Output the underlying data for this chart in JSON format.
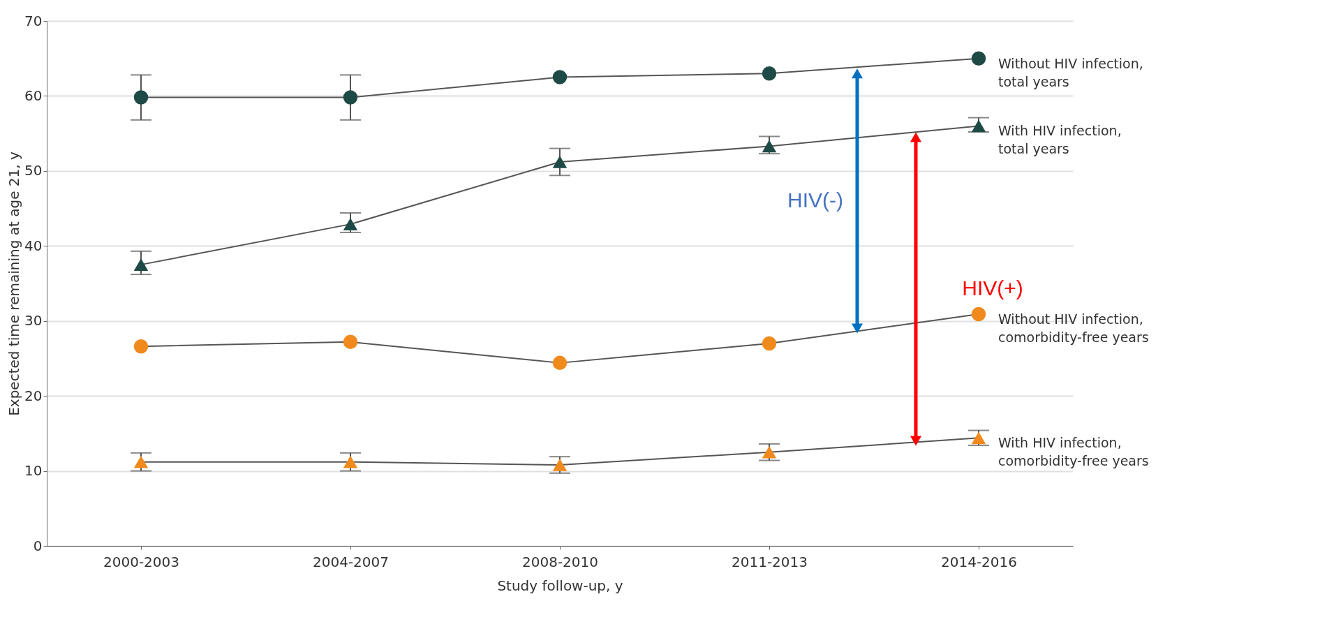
{
  "chart_data": {
    "type": "line",
    "xlabel": "Study follow-up, y",
    "ylabel": "Expected time remaining at age 21, y",
    "categories": [
      "2000-2003",
      "2004-2007",
      "2008-2010",
      "2011-2013",
      "2014-2016"
    ],
    "series": [
      {
        "name": "Without HIV infection, total years",
        "color": "#1e4a45",
        "marker": "circle",
        "values": [
          59.8,
          59.8,
          62.5,
          63.0,
          65.0
        ],
        "errors": [
          [
            56.8,
            62.8
          ],
          [
            56.8,
            62.8
          ],
          null,
          null,
          null
        ]
      },
      {
        "name": "With HIV infection, total years",
        "color": "#1e4a45",
        "marker": "triangle",
        "values": [
          37.5,
          42.9,
          51.2,
          53.3,
          56.0
        ],
        "errors": [
          [
            36.2,
            39.3
          ],
          [
            41.8,
            44.4
          ],
          [
            49.4,
            53.0
          ],
          [
            52.3,
            54.6
          ],
          [
            55.2,
            57.1
          ]
        ]
      },
      {
        "name": "Without HIV infection, comorbidity-free years",
        "color": "#f08a1c",
        "marker": "circle",
        "values": [
          26.6,
          27.2,
          24.4,
          27.0,
          30.9
        ]
      },
      {
        "name": "With HIV infection, comorbidity-free years",
        "color": "#f08a1c",
        "marker": "triangle",
        "values": [
          11.2,
          11.2,
          10.8,
          12.5,
          14.4
        ],
        "errors": [
          [
            10.0,
            12.4
          ],
          [
            10.0,
            12.4
          ],
          [
            9.7,
            11.9
          ],
          [
            11.4,
            13.6
          ],
          [
            13.4,
            15.4
          ]
        ]
      }
    ],
    "annotations": [
      "HIV(-)",
      "HIV(+)"
    ],
    "ylim": [
      0,
      70
    ],
    "yticks": [
      0,
      10,
      20,
      30,
      40,
      50,
      60,
      70
    ],
    "grid": "y",
    "legend": false,
    "line_style": "solid"
  }
}
